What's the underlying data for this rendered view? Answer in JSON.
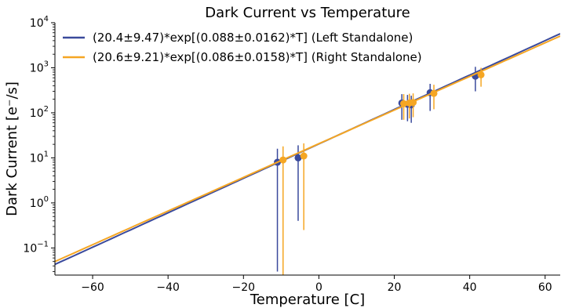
{
  "chart_data": {
    "type": "scatter",
    "title": "Dark Current vs Temperature",
    "xlabel": "Temperature [C]",
    "ylabel": "Dark Current [e⁻/s]",
    "xlim": [
      -70,
      64
    ],
    "ylim": [
      0.025,
      10000
    ],
    "yscale": "log",
    "grid": false,
    "legend_position": "top-left",
    "x_ticks": [
      -60,
      -40,
      -20,
      0,
      20,
      40,
      60
    ],
    "x_tick_labels": [
      "−60",
      "−40",
      "−20",
      "0",
      "20",
      "40",
      "60"
    ],
    "y_ticks": [
      0.1,
      1,
      10,
      100,
      1000,
      10000
    ],
    "y_tick_exponents": [
      "−1",
      "0",
      "1",
      "2",
      "3",
      "4"
    ],
    "series": [
      {
        "name": "(20.4±9.47)*exp[(0.088±0.0162)*T] (Left Standalone)",
        "color": "#3a4a9c",
        "fit": {
          "a": 20.4,
          "b": 0.088
        },
        "points": [
          {
            "x": -11.0,
            "y": 8.0,
            "ylo": 0.03,
            "yhi": 16.0
          },
          {
            "x": -5.5,
            "y": 10.0,
            "ylo": 0.4,
            "yhi": 19.0
          },
          {
            "x": 22.0,
            "y": 165,
            "ylo": 70,
            "yhi": 260
          },
          {
            "x": 23.5,
            "y": 155,
            "ylo": 65,
            "yhi": 250
          },
          {
            "x": 24.5,
            "y": 150,
            "ylo": 60,
            "yhi": 240
          },
          {
            "x": 29.5,
            "y": 280,
            "ylo": 110,
            "yhi": 440
          },
          {
            "x": 41.5,
            "y": 650,
            "ylo": 300,
            "yhi": 1050
          }
        ]
      },
      {
        "name": "(20.6±9.21)*exp[(0.086±0.0158)*T] (Right Standalone)",
        "color": "#f5a623",
        "fit": {
          "a": 20.6,
          "b": 0.086
        },
        "points": [
          {
            "x": -9.5,
            "y": 9.0,
            "ylo": 0.025,
            "yhi": 18.0
          },
          {
            "x": -4.0,
            "y": 11.0,
            "ylo": 0.25,
            "yhi": 21.0
          },
          {
            "x": 22.5,
            "y": 160,
            "ylo": 70,
            "yhi": 260
          },
          {
            "x": 24.0,
            "y": 165,
            "ylo": 75,
            "yhi": 265
          },
          {
            "x": 25.0,
            "y": 170,
            "ylo": 80,
            "yhi": 270
          },
          {
            "x": 30.5,
            "y": 270,
            "ylo": 120,
            "yhi": 420
          },
          {
            "x": 43.0,
            "y": 700,
            "ylo": 380,
            "yhi": 1000
          }
        ]
      }
    ]
  }
}
